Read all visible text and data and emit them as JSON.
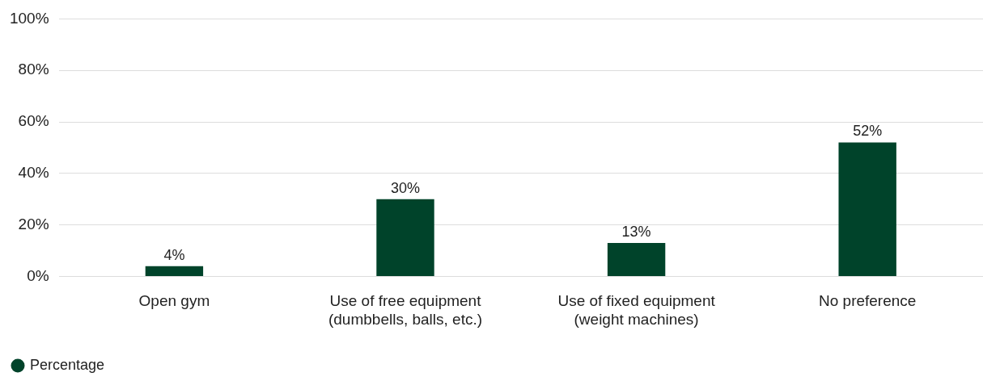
{
  "chart_data": {
    "type": "bar",
    "categories": [
      "Open gym",
      "Use of free equipment\n(dumbbells, balls, etc.)",
      "Use of fixed equipment\n(weight machines)",
      "No preference"
    ],
    "series": [
      {
        "name": "Percentage",
        "color": "#00432a",
        "values": [
          4,
          30,
          13,
          52
        ],
        "value_labels": [
          "4%",
          "30%",
          "13%",
          "52%"
        ]
      }
    ],
    "ylim": [
      0,
      100
    ],
    "yticks": [
      {
        "value": 0,
        "label": "0%"
      },
      {
        "value": 20,
        "label": "20%"
      },
      {
        "value": 40,
        "label": "40%"
      },
      {
        "value": 60,
        "label": "60%"
      },
      {
        "value": 80,
        "label": "80%"
      },
      {
        "value": 100,
        "label": "100%"
      }
    ],
    "grid": "y",
    "legend": "bottom left"
  }
}
